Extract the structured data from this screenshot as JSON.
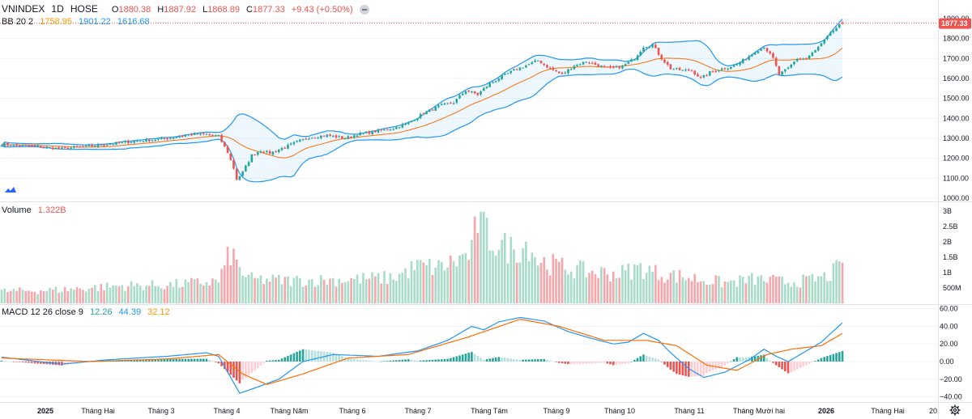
{
  "header": {
    "symbol": "VNINDEX",
    "interval": "1D",
    "exchange": "HOSE",
    "ohlc": {
      "open_label": "O",
      "open": "1880.38",
      "high_label": "H",
      "high": "1887.92",
      "low_label": "L",
      "low": "1868.89",
      "close_label": "C",
      "close": "1877.33",
      "change": "+9.43 (+0.50%)"
    }
  },
  "bb": {
    "label": "BB 20 2",
    "basis": "1758.95",
    "upper": "1901.22",
    "lower": "1616.68"
  },
  "volume_legend": {
    "label": "Volume",
    "value": "1.322B"
  },
  "macd_legend": {
    "label": "MACD 12 26 close 9",
    "hist": "12.26",
    "macd": "44.39",
    "signal": "32.12"
  },
  "colors": {
    "up": "#26a69a",
    "down": "#ef5350",
    "bb_basis": "#ff6d00",
    "bb_band": "#2196f3",
    "bb_fill": "#2196f31a",
    "macd_line": "#2196f3",
    "signal_line": "#ff6d00",
    "vol_up": "#a8dcc8",
    "vol_down": "#f7a7ab",
    "hist_up_strong": "#26a69a",
    "hist_up_weak": "#b2dfdb",
    "hist_down_strong": "#ef5350",
    "hist_down_weak": "#ffcdd2",
    "grid": "#f0f3fa",
    "price_line": "#ef5350"
  },
  "price_marker": "1877.33",
  "chart_data": {
    "type": "candlestick",
    "title": "VNINDEX 1D HOSE",
    "price_axis": {
      "ylim": [
        1000,
        1900
      ],
      "ticks": [
        "1900.00",
        "1800.00",
        "1700.00",
        "1600.00",
        "1500.00",
        "1400.00",
        "1300.00",
        "1200.00",
        "1100.00",
        "1000.00"
      ]
    },
    "volume_axis": {
      "ticks": [
        "3B",
        "2.5B",
        "2B",
        "1.5B",
        "1B",
        "500M"
      ]
    },
    "macd_axis": {
      "ylim": [
        -40,
        60
      ],
      "ticks": [
        "60.00",
        "40.00",
        "20.00",
        "0.00",
        "−20.00",
        "−40.00"
      ]
    },
    "time_axis": [
      "2025",
      "Tháng Hai",
      "Tháng 3",
      "Tháng 4",
      "Tháng Năm",
      "Tháng 6",
      "Tháng 7",
      "Tháng Tám",
      "Tháng 9",
      "Tháng 10",
      "Tháng 11",
      "Tháng Mười hai",
      "2026",
      "Tháng Hai",
      "20"
    ],
    "close_anchors": [
      [
        0,
        1270
      ],
      [
        12,
        1258
      ],
      [
        20,
        1248
      ],
      [
        30,
        1262
      ],
      [
        42,
        1282
      ],
      [
        55,
        1300
      ],
      [
        62,
        1318
      ],
      [
        68,
        1320
      ],
      [
        72,
        1310
      ],
      [
        75,
        1230
      ],
      [
        77,
        1150
      ],
      [
        78,
        1095
      ],
      [
        80,
        1130
      ],
      [
        83,
        1215
      ],
      [
        86,
        1240
      ],
      [
        89,
        1225
      ],
      [
        93,
        1250
      ],
      [
        97,
        1275
      ],
      [
        102,
        1305
      ],
      [
        108,
        1315
      ],
      [
        114,
        1300
      ],
      [
        118,
        1320
      ],
      [
        124,
        1335
      ],
      [
        130,
        1350
      ],
      [
        135,
        1378
      ],
      [
        140,
        1425
      ],
      [
        145,
        1460
      ],
      [
        150,
        1480
      ],
      [
        154,
        1540
      ],
      [
        158,
        1520
      ],
      [
        162,
        1575
      ],
      [
        166,
        1610
      ],
      [
        170,
        1640
      ],
      [
        174,
        1665
      ],
      [
        178,
        1690
      ],
      [
        182,
        1650
      ],
      [
        186,
        1620
      ],
      [
        190,
        1665
      ],
      [
        194,
        1685
      ],
      [
        198,
        1665
      ],
      [
        202,
        1650
      ],
      [
        206,
        1660
      ],
      [
        210,
        1700
      ],
      [
        213,
        1760
      ],
      [
        216,
        1770
      ],
      [
        219,
        1700
      ],
      [
        222,
        1650
      ],
      [
        226,
        1640
      ],
      [
        229,
        1640
      ],
      [
        232,
        1600
      ],
      [
        235,
        1630
      ],
      [
        238,
        1645
      ],
      [
        241,
        1655
      ],
      [
        244,
        1670
      ],
      [
        247,
        1700
      ],
      [
        250,
        1735
      ],
      [
        253,
        1760
      ],
      [
        256,
        1700
      ],
      [
        258,
        1620
      ],
      [
        261,
        1650
      ],
      [
        264,
        1700
      ],
      [
        267,
        1700
      ],
      [
        270,
        1740
      ],
      [
        273,
        1790
      ],
      [
        276,
        1840
      ],
      [
        279,
        1877
      ]
    ],
    "volume_anchors": [
      [
        0,
        420
      ],
      [
        20,
        480
      ],
      [
        40,
        620
      ],
      [
        55,
        640
      ],
      [
        65,
        720
      ],
      [
        72,
        780
      ],
      [
        76,
        1800
      ],
      [
        79,
        1200
      ],
      [
        82,
        850
      ],
      [
        95,
        800
      ],
      [
        110,
        820
      ],
      [
        130,
        900
      ],
      [
        138,
        1300
      ],
      [
        145,
        1250
      ],
      [
        152,
        1550
      ],
      [
        156,
        1800
      ],
      [
        158,
        3000
      ],
      [
        162,
        2300
      ],
      [
        166,
        2000
      ],
      [
        170,
        1900
      ],
      [
        175,
        2100
      ],
      [
        178,
        1500
      ],
      [
        185,
        1300
      ],
      [
        195,
        1100
      ],
      [
        205,
        1050
      ],
      [
        212,
        1250
      ],
      [
        218,
        1050
      ],
      [
        225,
        950
      ],
      [
        232,
        850
      ],
      [
        240,
        720
      ],
      [
        250,
        850
      ],
      [
        260,
        750
      ],
      [
        268,
        800
      ],
      [
        274,
        950
      ],
      [
        279,
        1322
      ]
    ],
    "macd_anchors": [
      [
        0,
        5
      ],
      [
        20,
        -3
      ],
      [
        35,
        2
      ],
      [
        55,
        6
      ],
      [
        68,
        10
      ],
      [
        72,
        6
      ],
      [
        76,
        -18
      ],
      [
        79,
        -36
      ],
      [
        84,
        -30
      ],
      [
        92,
        -20
      ],
      [
        100,
        0
      ],
      [
        110,
        8
      ],
      [
        125,
        6
      ],
      [
        138,
        12
      ],
      [
        148,
        24
      ],
      [
        156,
        40
      ],
      [
        160,
        36
      ],
      [
        165,
        45
      ],
      [
        172,
        50
      ],
      [
        180,
        46
      ],
      [
        188,
        34
      ],
      [
        196,
        26
      ],
      [
        203,
        20
      ],
      [
        208,
        22
      ],
      [
        213,
        32
      ],
      [
        218,
        24
      ],
      [
        222,
        10
      ],
      [
        228,
        -8
      ],
      [
        233,
        -18
      ],
      [
        240,
        -12
      ],
      [
        248,
        2
      ],
      [
        253,
        14
      ],
      [
        257,
        6
      ],
      [
        261,
        0
      ],
      [
        266,
        10
      ],
      [
        272,
        22
      ],
      [
        279,
        44
      ]
    ],
    "signal_anchors": [
      [
        0,
        4
      ],
      [
        30,
        0
      ],
      [
        55,
        3
      ],
      [
        72,
        8
      ],
      [
        80,
        -14
      ],
      [
        88,
        -26
      ],
      [
        100,
        -14
      ],
      [
        115,
        4
      ],
      [
        135,
        8
      ],
      [
        155,
        28
      ],
      [
        172,
        48
      ],
      [
        185,
        40
      ],
      [
        200,
        24
      ],
      [
        214,
        24
      ],
      [
        224,
        18
      ],
      [
        234,
        -4
      ],
      [
        244,
        -10
      ],
      [
        254,
        8
      ],
      [
        262,
        14
      ],
      [
        272,
        18
      ],
      [
        279,
        32
      ]
    ]
  }
}
